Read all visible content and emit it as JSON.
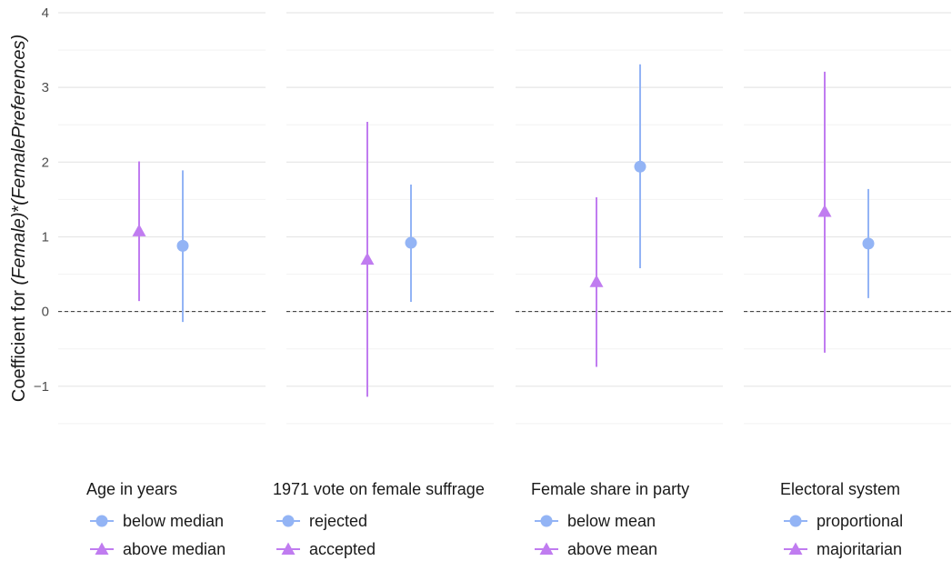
{
  "chart_data": {
    "type": "errorbar",
    "ylabel": {
      "prefix": "Coefficient for ",
      "part1": "(Female)",
      "star": "*",
      "part2": "(FemalePreferences)"
    },
    "ylim": [
      -1.55,
      4.0
    ],
    "yticks": [
      -1,
      0,
      1,
      2,
      3,
      4
    ],
    "ytick_labels": [
      "−1",
      "0",
      "1",
      "2",
      "3",
      "4"
    ],
    "reference_line": 0,
    "grid": true,
    "colors": {
      "blue": "#93b4f5",
      "purple": "#c07cf0"
    },
    "panels": [
      {
        "legend_title": "Age in years",
        "series": [
          {
            "name": "above median",
            "shape": "triangle",
            "color": "#c07cf0",
            "estimate": 1.08,
            "lower": 0.14,
            "upper": 2.01
          },
          {
            "name": "below median",
            "shape": "circle",
            "color": "#93b4f5",
            "estimate": 0.88,
            "lower": -0.14,
            "upper": 1.89
          }
        ]
      },
      {
        "legend_title": "1971 vote on female suffrage",
        "series": [
          {
            "name": "accepted",
            "shape": "triangle",
            "color": "#c07cf0",
            "estimate": 0.7,
            "lower": -1.14,
            "upper": 2.54
          },
          {
            "name": "rejected",
            "shape": "circle",
            "color": "#93b4f5",
            "estimate": 0.92,
            "lower": 0.13,
            "upper": 1.7
          }
        ]
      },
      {
        "legend_title": "Female share in party",
        "series": [
          {
            "name": "above mean",
            "shape": "triangle",
            "color": "#c07cf0",
            "estimate": 0.4,
            "lower": -0.74,
            "upper": 1.53
          },
          {
            "name": "below mean",
            "shape": "circle",
            "color": "#93b4f5",
            "estimate": 1.94,
            "lower": 0.58,
            "upper": 3.31
          }
        ]
      },
      {
        "legend_title": "Electoral system",
        "series": [
          {
            "name": "majoritarian",
            "shape": "triangle",
            "color": "#c07cf0",
            "estimate": 1.34,
            "lower": -0.55,
            "upper": 3.21
          },
          {
            "name": "proportional",
            "shape": "circle",
            "color": "#93b4f5",
            "estimate": 0.91,
            "lower": 0.18,
            "upper": 1.64
          }
        ]
      }
    ],
    "legend": {
      "placement": "bottom",
      "order": [
        "circle",
        "triangle"
      ]
    }
  }
}
